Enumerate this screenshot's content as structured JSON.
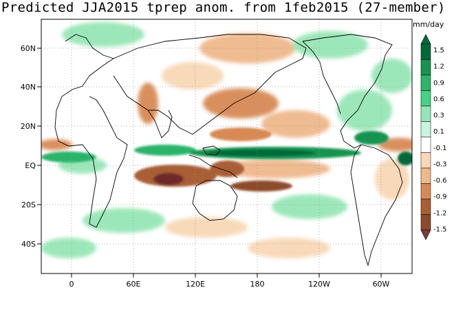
{
  "title": "Predicted JJA2015 tprep anom. from 1feb2015 (27-member)",
  "units": "mm/day",
  "x_ticks": [
    "0",
    "60E",
    "120E",
    "180",
    "120W",
    "60W"
  ],
  "y_ticks": [
    "60N",
    "40N",
    "20N",
    "EQ",
    "20S",
    "40S"
  ],
  "colorbar": {
    "labels": [
      "1.5",
      "1.2",
      "0.9",
      "0.6",
      "0.3",
      "0.1",
      "-0.1",
      "-0.3",
      "-0.6",
      "-0.9",
      "-1.2",
      "-1.5"
    ],
    "colors": [
      "#00693a",
      "#17944f",
      "#2bb46a",
      "#44d283",
      "#97e6b6",
      "#c9f4dd",
      "#ffffff",
      "#f8d8b6",
      "#efb88b",
      "#d78a55",
      "#a85f34",
      "#8c4b2a",
      "#6e2a2a",
      "#7e3c3c"
    ]
  }
}
